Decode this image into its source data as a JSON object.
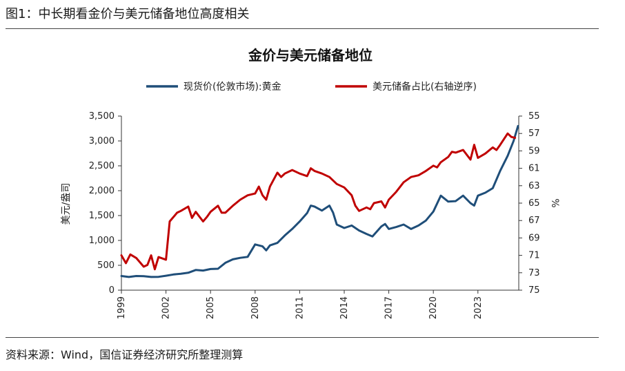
{
  "figure": {
    "caption": "图1：中长期看金价与美元储备地位高度相关",
    "source": "资料来源：Wind，国信证券经济研究所整理测算"
  },
  "chart_data": {
    "type": "line",
    "title": "金价与美元储备地位",
    "xlabel": "",
    "ylabel": "美元/盎司",
    "y2label": "%",
    "x_ticks": [
      "1999",
      "2002",
      "2005",
      "2008",
      "2011",
      "2014",
      "2017",
      "2020",
      "2023"
    ],
    "y_ticks": [
      "0",
      "500",
      "1,000",
      "1,500",
      "2,000",
      "2,500",
      "3,000",
      "3,500"
    ],
    "y2_ticks": [
      "55",
      "57",
      "59",
      "61",
      "63",
      "65",
      "67",
      "69",
      "71",
      "73",
      "75"
    ],
    "ylim": [
      0,
      3500
    ],
    "y2lim": [
      75,
      55
    ],
    "y2_reversed": true,
    "xlim": [
      1999.0,
      2025.75
    ],
    "legend_position": "top",
    "series": [
      {
        "name": "现货价(伦敦市场):黄金",
        "axis": "left",
        "color": "#1f4e79",
        "points": [
          [
            1999.0,
            285
          ],
          [
            1999.5,
            265
          ],
          [
            2000.0,
            285
          ],
          [
            2000.5,
            280
          ],
          [
            2001.0,
            265
          ],
          [
            2001.5,
            268
          ],
          [
            2002.0,
            290
          ],
          [
            2002.5,
            315
          ],
          [
            2003.0,
            330
          ],
          [
            2003.5,
            350
          ],
          [
            2004.0,
            405
          ],
          [
            2004.5,
            395
          ],
          [
            2005.0,
            425
          ],
          [
            2005.5,
            430
          ],
          [
            2006.0,
            550
          ],
          [
            2006.5,
            620
          ],
          [
            2007.0,
            650
          ],
          [
            2007.5,
            670
          ],
          [
            2008.0,
            920
          ],
          [
            2008.5,
            880
          ],
          [
            2008.75,
            800
          ],
          [
            2009.0,
            900
          ],
          [
            2009.5,
            950
          ],
          [
            2010.0,
            1100
          ],
          [
            2010.5,
            1230
          ],
          [
            2011.0,
            1380
          ],
          [
            2011.5,
            1550
          ],
          [
            2011.75,
            1700
          ],
          [
            2012.0,
            1680
          ],
          [
            2012.5,
            1600
          ],
          [
            2013.0,
            1700
          ],
          [
            2013.25,
            1560
          ],
          [
            2013.5,
            1320
          ],
          [
            2014.0,
            1250
          ],
          [
            2014.5,
            1300
          ],
          [
            2015.0,
            1200
          ],
          [
            2015.5,
            1130
          ],
          [
            2015.9,
            1080
          ],
          [
            2016.5,
            1280
          ],
          [
            2016.75,
            1330
          ],
          [
            2017.0,
            1230
          ],
          [
            2017.5,
            1270
          ],
          [
            2018.0,
            1320
          ],
          [
            2018.5,
            1230
          ],
          [
            2019.0,
            1300
          ],
          [
            2019.5,
            1400
          ],
          [
            2020.0,
            1580
          ],
          [
            2020.5,
            1900
          ],
          [
            2021.0,
            1780
          ],
          [
            2021.5,
            1790
          ],
          [
            2022.0,
            1900
          ],
          [
            2022.5,
            1750
          ],
          [
            2022.75,
            1700
          ],
          [
            2023.0,
            1900
          ],
          [
            2023.5,
            1960
          ],
          [
            2024.0,
            2050
          ],
          [
            2024.5,
            2400
          ],
          [
            2025.0,
            2700
          ],
          [
            2025.4,
            3000
          ],
          [
            2025.7,
            3300
          ]
        ]
      },
      {
        "name": "美元储备占比(右轴逆序)",
        "axis": "right",
        "color": "#c00000",
        "points": [
          [
            1999.0,
            71.0
          ],
          [
            1999.3,
            71.9
          ],
          [
            1999.6,
            70.9
          ],
          [
            2000.0,
            71.3
          ],
          [
            2000.5,
            72.3
          ],
          [
            2000.75,
            72.1
          ],
          [
            2001.0,
            71.0
          ],
          [
            2001.25,
            72.6
          ],
          [
            2001.5,
            71.2
          ],
          [
            2002.0,
            71.5
          ],
          [
            2002.25,
            67.1
          ],
          [
            2002.75,
            66.1
          ],
          [
            2003.0,
            65.9
          ],
          [
            2003.5,
            65.4
          ],
          [
            2003.75,
            66.7
          ],
          [
            2004.0,
            66.0
          ],
          [
            2004.5,
            67.1
          ],
          [
            2004.75,
            66.6
          ],
          [
            2005.0,
            66.0
          ],
          [
            2005.5,
            65.3
          ],
          [
            2005.75,
            66.1
          ],
          [
            2006.0,
            66.1
          ],
          [
            2006.5,
            65.3
          ],
          [
            2007.0,
            64.6
          ],
          [
            2007.5,
            64.1
          ],
          [
            2008.0,
            63.9
          ],
          [
            2008.25,
            63.1
          ],
          [
            2008.5,
            64.1
          ],
          [
            2008.75,
            64.6
          ],
          [
            2009.0,
            63.1
          ],
          [
            2009.5,
            61.5
          ],
          [
            2009.75,
            62.0
          ],
          [
            2010.0,
            61.6
          ],
          [
            2010.5,
            61.2
          ],
          [
            2011.0,
            61.6
          ],
          [
            2011.5,
            61.9
          ],
          [
            2011.75,
            61.0
          ],
          [
            2012.0,
            61.3
          ],
          [
            2012.5,
            61.6
          ],
          [
            2013.0,
            62.0
          ],
          [
            2013.5,
            62.8
          ],
          [
            2014.0,
            63.2
          ],
          [
            2014.5,
            64.1
          ],
          [
            2014.75,
            65.3
          ],
          [
            2015.0,
            65.9
          ],
          [
            2015.5,
            65.5
          ],
          [
            2015.75,
            65.7
          ],
          [
            2016.0,
            65.0
          ],
          [
            2016.5,
            64.8
          ],
          [
            2016.75,
            65.5
          ],
          [
            2017.0,
            64.6
          ],
          [
            2017.5,
            63.7
          ],
          [
            2018.0,
            62.6
          ],
          [
            2018.5,
            62.0
          ],
          [
            2019.0,
            61.8
          ],
          [
            2019.5,
            61.3
          ],
          [
            2020.0,
            60.7
          ],
          [
            2020.25,
            60.9
          ],
          [
            2020.5,
            60.3
          ],
          [
            2021.0,
            59.7
          ],
          [
            2021.25,
            59.1
          ],
          [
            2021.5,
            59.2
          ],
          [
            2022.0,
            58.9
          ],
          [
            2022.5,
            60.0
          ],
          [
            2022.75,
            58.3
          ],
          [
            2023.0,
            59.8
          ],
          [
            2023.5,
            59.3
          ],
          [
            2024.0,
            58.6
          ],
          [
            2024.25,
            58.9
          ],
          [
            2024.5,
            58.3
          ],
          [
            2025.0,
            57.0
          ],
          [
            2025.25,
            57.4
          ],
          [
            2025.5,
            57.5
          ]
        ]
      }
    ]
  }
}
